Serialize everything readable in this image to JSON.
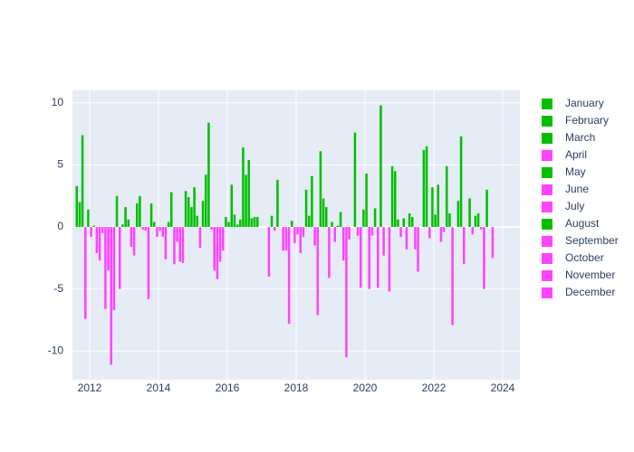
{
  "chart_data": {
    "type": "bar",
    "positive_color": "#00c000",
    "negative_color": "#ff44ff",
    "xlim": [
      2011.5,
      2024.5
    ],
    "xticks": [
      2012,
      2014,
      2016,
      2018,
      2020,
      2022,
      2024
    ],
    "ylim": [
      -12.3,
      11.0
    ],
    "yticks": [
      -10,
      -5,
      0,
      5,
      10
    ],
    "grid": true,
    "legend": "right",
    "series": [
      {
        "name": "January",
        "color": "#00c000",
        "x": [
          2012,
          2013,
          2014,
          2015,
          2016,
          2017,
          2018,
          2019,
          2020,
          2021,
          2022,
          2023
        ],
        "values": [
          -0.8,
          1.6,
          -0.3,
          3.2,
          0.4,
          0,
          -0.6,
          0.4,
          4.3,
          -0.8,
          1.0,
          2.3
        ]
      },
      {
        "name": "February",
        "color": "#00c000",
        "x": [
          2012,
          2013,
          2014,
          2015,
          2016,
          2017,
          2018,
          2019,
          2020,
          2021,
          2022,
          2023
        ],
        "values": [
          0.1,
          0.6,
          -0.8,
          0.9,
          3.4,
          0,
          -2.1,
          -1.2,
          -5.0,
          0.7,
          3.4,
          -0.6
        ]
      },
      {
        "name": "March",
        "color": "#00c000",
        "x": [
          2012,
          2013,
          2014,
          2015,
          2016,
          2017,
          2018,
          2019,
          2020,
          2021,
          2022,
          2023
        ],
        "values": [
          -2.1,
          -1.6,
          -2.6,
          -1.7,
          1.0,
          -4.0,
          -0.8,
          0.1,
          -0.7,
          -1.8,
          -1.2,
          0.9
        ]
      },
      {
        "name": "April",
        "color": "#ff44ff",
        "x": [
          2012,
          2013,
          2014,
          2015,
          2016,
          2017,
          2018,
          2019,
          2020,
          2021,
          2022,
          2023
        ],
        "values": [
          -2.7,
          -2.3,
          0.4,
          2.1,
          0.2,
          0.9,
          3.0,
          1.2,
          1.5,
          1.1,
          -0.4,
          1.1
        ]
      },
      {
        "name": "May",
        "color": "#00c000",
        "x": [
          2012,
          2013,
          2014,
          2015,
          2016,
          2017,
          2018,
          2019,
          2020,
          2021,
          2022,
          2023
        ],
        "values": [
          -0.5,
          1.9,
          2.8,
          4.2,
          0.6,
          -0.3,
          0.9,
          -2.7,
          -4.9,
          0.8,
          4.9,
          -0.2
        ]
      },
      {
        "name": "June",
        "color": "#ff44ff",
        "x": [
          2012,
          2013,
          2014,
          2015,
          2016,
          2017,
          2018,
          2019,
          2020,
          2021,
          2022,
          2023
        ],
        "values": [
          -6.6,
          2.5,
          -3.0,
          8.4,
          6.4,
          3.8,
          4.1,
          -10.5,
          9.8,
          -1.8,
          1.1,
          -5.0
        ]
      },
      {
        "name": "July",
        "color": "#ff44ff",
        "x": [
          2012,
          2013,
          2014,
          2015,
          2016,
          2017,
          2018,
          2019,
          2020,
          2021,
          2022,
          2023
        ],
        "values": [
          -3.5,
          -0.2,
          -1.2,
          -0.2,
          4.2,
          0,
          -1.5,
          -1.0,
          -2.3,
          -3.6,
          -7.9,
          3.0
        ]
      },
      {
        "name": "August",
        "color": "#00c000",
        "x": [
          2011,
          2012,
          2013,
          2014,
          2015,
          2016,
          2017,
          2018,
          2019,
          2020,
          2021,
          2022,
          2023
        ],
        "values": [
          3.3,
          -11.1,
          -0.3,
          -2.8,
          -3.5,
          5.4,
          -1.9,
          -7.1,
          0,
          0,
          0,
          0,
          0
        ]
      },
      {
        "name": "September",
        "color": "#ff44ff",
        "x": [
          2011,
          2012,
          2013,
          2014,
          2015,
          2016,
          2017,
          2018,
          2019,
          2020,
          2021,
          2022,
          2023
        ],
        "values": [
          2.0,
          -6.7,
          -5.8,
          -2.9,
          -4.2,
          0.7,
          -1.9,
          6.1,
          7.6,
          -5.2,
          6.2,
          2.1,
          -2.5
        ]
      },
      {
        "name": "October",
        "color": "#ff44ff",
        "x": [
          2011,
          2012,
          2013,
          2014,
          2015,
          2016,
          2017,
          2018,
          2019,
          2020,
          2021,
          2022
        ],
        "values": [
          7.4,
          2.5,
          1.9,
          2.9,
          -2.8,
          0.8,
          -7.8,
          2.3,
          -0.7,
          4.9,
          6.5,
          7.3
        ]
      },
      {
        "name": "November",
        "color": "#ff44ff",
        "x": [
          2011,
          2012,
          2013,
          2014,
          2015,
          2016,
          2017,
          2018,
          2019,
          2020,
          2021,
          2022
        ],
        "values": [
          -7.4,
          -5.0,
          0.4,
          2.4,
          -1.9,
          0.8,
          0.5,
          1.6,
          -4.9,
          4.5,
          -0.9,
          -3.0
        ]
      },
      {
        "name": "December",
        "color": "#ff44ff",
        "x": [
          2011,
          2012,
          2013,
          2014,
          2015,
          2016,
          2017,
          2018,
          2019,
          2020,
          2021,
          2022
        ],
        "values": [
          1.4,
          0.2,
          -0.8,
          1.6,
          0.8,
          0,
          -1.3,
          -4.1,
          1.4,
          0.6,
          3.2,
          0
        ]
      }
    ]
  }
}
